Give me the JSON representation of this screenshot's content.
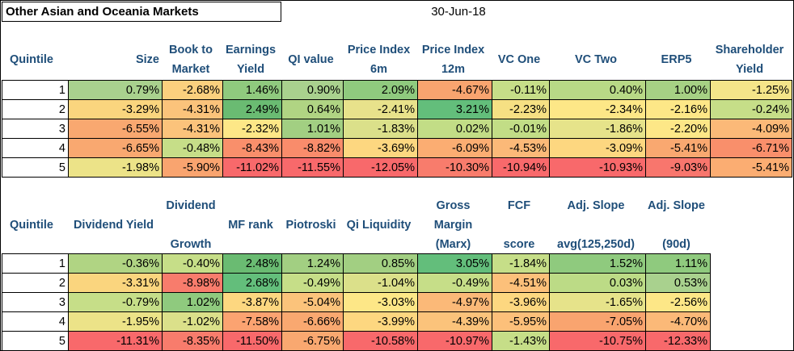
{
  "title": "Other Asian and Oceania Markets",
  "date": "30-Jun-18",
  "table1": {
    "headers": [
      [
        "Quintile"
      ],
      [
        "Size"
      ],
      [
        "Book to",
        "Market"
      ],
      [
        "Earnings",
        "Yield"
      ],
      [
        "QI value"
      ],
      [
        "Price Index",
        "6m"
      ],
      [
        "Price Index",
        "12m"
      ],
      [
        "VC One"
      ],
      [
        "VC Two"
      ],
      [
        "ERP5"
      ],
      [
        "Shareholder",
        "Yield"
      ]
    ],
    "rows": [
      {
        "cells": [
          "1",
          "0.79%",
          "-2.68%",
          "1.46%",
          "0.90%",
          "2.09%",
          "-4.67%",
          "-0.11%",
          "0.40%",
          "1.00%",
          "-1.25%"
        ],
        "colors": [
          "#ffffff",
          "#a9d18e",
          "#fbd07e",
          "#8fca7e",
          "#a9d18e",
          "#8fca7e",
          "#f9a46f",
          "#c6de88",
          "#b8d986",
          "#a6d184",
          "#f4e489"
        ]
      },
      {
        "cells": [
          "2",
          "-3.29%",
          "-4.31%",
          "2.49%",
          "0.64%",
          "-2.41%",
          "3.21%",
          "-2.23%",
          "-2.34%",
          "-2.16%",
          "-0.24%"
        ],
        "colors": [
          "#ffffff",
          "#fad57e",
          "#fbc37b",
          "#6abb72",
          "#b0d483",
          "#e8e28b",
          "#63be7b",
          "#f6e083",
          "#fde787",
          "#fde787",
          "#c6de88"
        ]
      },
      {
        "cells": [
          "3",
          "-6.55%",
          "-4.31%",
          "-2.32%",
          "1.01%",
          "-1.83%",
          "0.02%",
          "-0.01%",
          "-1.86%",
          "-2.20%",
          "-4.09%"
        ],
        "colors": [
          "#ffffff",
          "#f9a870",
          "#fbc37b",
          "#fde787",
          "#a2cf82",
          "#dbe08a",
          "#c2dd86",
          "#c2dd86",
          "#e6e38a",
          "#fde787",
          "#fbb978"
        ]
      },
      {
        "cells": [
          "4",
          "-6.65%",
          "-0.48%",
          "-8.43%",
          "-8.82%",
          "-3.69%",
          "-6.09%",
          "-4.53%",
          "-3.09%",
          "-5.41%",
          "-6.71%"
        ],
        "colors": [
          "#ffffff",
          "#f9a870",
          "#c6de88",
          "#f98f6b",
          "#f98c6b",
          "#fdd780",
          "#fbad72",
          "#fbb978",
          "#fdd780",
          "#f9a870",
          "#f98f6b"
        ]
      },
      {
        "cells": [
          "5",
          "-1.98%",
          "-5.90%",
          "-11.02%",
          "-11.55%",
          "-12.05%",
          "-10.30%",
          "-10.94%",
          "-10.93%",
          "-9.03%",
          "-5.41%"
        ],
        "colors": [
          "#ffffff",
          "#ece388",
          "#f9a46f",
          "#f8696b",
          "#f8696b",
          "#f8696b",
          "#f87c6c",
          "#f8696b",
          "#f8696b",
          "#f8766d",
          "#fbad72"
        ]
      }
    ]
  },
  "table2": {
    "headers": [
      [
        "",
        "Quintile",
        ""
      ],
      [
        "",
        "Dividend Yield",
        ""
      ],
      [
        "Dividend",
        "",
        "Growth"
      ],
      [
        "",
        "MF rank",
        ""
      ],
      [
        "",
        "Piotroski",
        ""
      ],
      [
        "",
        "Qi Liquidity",
        ""
      ],
      [
        "Gross",
        "Margin",
        "(Marx)"
      ],
      [
        "FCF",
        "",
        "score"
      ],
      [
        "Adj. Slope",
        "",
        "avg(125,250d)"
      ],
      [
        "Adj. Slope",
        "",
        "(90d)"
      ]
    ],
    "rows": [
      {
        "cells": [
          "1",
          "-0.36%",
          "-0.40%",
          "2.48%",
          "1.24%",
          "0.85%",
          "3.05%",
          "-1.84%",
          "1.52%",
          "1.11%"
        ],
        "colors": [
          "#ffffff",
          "#b0d483",
          "#c6de88",
          "#6abb72",
          "#a2cf82",
          "#a2cf82",
          "#63be7b",
          "#c6de88",
          "#8fca7e",
          "#8fca7e"
        ]
      },
      {
        "cells": [
          "2",
          "-3.31%",
          "-8.98%",
          "2.68%",
          "-0.49%",
          "-1.04%",
          "-0.49%",
          "-4.51%",
          "0.03%",
          "0.53%"
        ],
        "colors": [
          "#ffffff",
          "#fad57e",
          "#f87c6c",
          "#63be7b",
          "#c6de88",
          "#dbe08a",
          "#c6de88",
          "#fcc07a",
          "#bcdb86",
          "#a9d18e"
        ]
      },
      {
        "cells": [
          "3",
          "-0.79%",
          "1.02%",
          "-3.87%",
          "-5.04%",
          "-3.03%",
          "-4.97%",
          "-3.96%",
          "-1.65%",
          "-2.56%"
        ],
        "colors": [
          "#ffffff",
          "#c6de88",
          "#8fca7e",
          "#fdd780",
          "#fbc37b",
          "#fde787",
          "#fbb978",
          "#fdd780",
          "#e6e38a",
          "#fde787"
        ]
      },
      {
        "cells": [
          "4",
          "-1.95%",
          "-1.02%",
          "-7.58%",
          "-6.66%",
          "-3.99%",
          "-4.39%",
          "-5.95%",
          "-7.05%",
          "-4.70%"
        ],
        "colors": [
          "#ffffff",
          "#ece388",
          "#dbe08a",
          "#fba371",
          "#f9a870",
          "#fdd780",
          "#fbc37b",
          "#fcc07a",
          "#f9a46f",
          "#fbb978"
        ]
      },
      {
        "cells": [
          "5",
          "-11.31%",
          "-8.35%",
          "-11.50%",
          "-6.75%",
          "-10.58%",
          "-10.97%",
          "-1.43%",
          "-10.75%",
          "-12.33%"
        ],
        "colors": [
          "#ffffff",
          "#f8696b",
          "#f87c6c",
          "#f8696b",
          "#f9a870",
          "#f8696b",
          "#f8696b",
          "#c6de88",
          "#f8696b",
          "#f8696b"
        ]
      }
    ]
  }
}
